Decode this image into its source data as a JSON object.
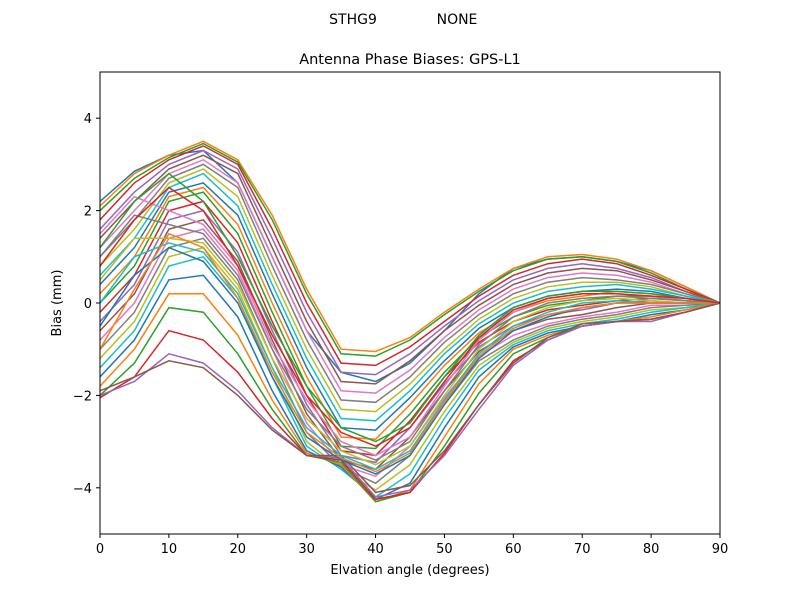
{
  "header": {
    "station": "STHG9",
    "radome": "NONE"
  },
  "chart_data": {
    "type": "line",
    "title": "Antenna Phase Biases: GPS-L1",
    "xlabel": "Elvation angle (degrees)",
    "ylabel": "Bias (mm)",
    "xlim": [
      0,
      90
    ],
    "ylim": [
      -5,
      5
    ],
    "xticks": [
      0,
      10,
      20,
      30,
      40,
      50,
      60,
      70,
      80,
      90
    ],
    "yticks": [
      -4,
      -2,
      0,
      2,
      4
    ],
    "x": [
      0,
      5,
      10,
      15,
      20,
      25,
      30,
      35,
      40,
      45,
      50,
      55,
      60,
      65,
      70,
      75,
      80,
      85,
      90
    ],
    "grid": false,
    "colors": [
      "#1f77b4",
      "#ff7f0e",
      "#2ca02c",
      "#d62728",
      "#9467bd",
      "#8c564b",
      "#e377c2",
      "#7f7f7f",
      "#bcbd22",
      "#17becf"
    ],
    "series": [
      {
        "values": [
          2.2,
          2.85,
          3.2,
          3.3,
          2.6,
          1.0,
          -0.6,
          -1.5,
          -1.7,
          -1.3,
          -0.6,
          0.2,
          0.75,
          0.95,
          1.0,
          0.9,
          0.7,
          0.35,
          0
        ]
      },
      {
        "values": [
          2.1,
          2.8,
          3.2,
          3.5,
          3.1,
          1.9,
          0.3,
          -1.0,
          -1.05,
          -0.75,
          -0.2,
          0.3,
          0.75,
          1.0,
          1.05,
          0.95,
          0.7,
          0.35,
          0
        ]
      },
      {
        "values": [
          2.0,
          2.7,
          3.15,
          3.45,
          3.05,
          1.8,
          0.2,
          -1.1,
          -1.15,
          -0.8,
          -0.25,
          0.25,
          0.7,
          0.95,
          1.0,
          0.9,
          0.65,
          0.3,
          0
        ]
      },
      {
        "values": [
          1.8,
          2.6,
          3.1,
          3.4,
          3.0,
          1.6,
          0.0,
          -1.3,
          -1.35,
          -0.95,
          -0.4,
          0.15,
          0.6,
          0.85,
          0.95,
          0.85,
          0.6,
          0.3,
          0
        ]
      },
      {
        "values": [
          1.6,
          2.4,
          3.0,
          3.3,
          2.9,
          1.4,
          -0.2,
          -1.5,
          -1.55,
          -1.1,
          -0.5,
          0.05,
          0.5,
          0.75,
          0.85,
          0.75,
          0.55,
          0.25,
          0
        ]
      },
      {
        "values": [
          1.4,
          2.2,
          2.9,
          3.2,
          2.8,
          1.2,
          -0.4,
          -1.7,
          -1.75,
          -1.25,
          -0.6,
          -0.05,
          0.4,
          0.65,
          0.75,
          0.7,
          0.5,
          0.25,
          0
        ]
      },
      {
        "values": [
          1.2,
          2.0,
          2.8,
          3.1,
          2.6,
          1.0,
          -0.6,
          -1.9,
          -1.95,
          -1.45,
          -0.75,
          -0.15,
          0.3,
          0.55,
          0.65,
          0.6,
          0.45,
          0.2,
          0
        ]
      },
      {
        "values": [
          1.0,
          1.8,
          2.7,
          3.0,
          2.5,
          0.8,
          -0.8,
          -2.1,
          -2.15,
          -1.6,
          -0.85,
          -0.25,
          0.2,
          0.45,
          0.55,
          0.5,
          0.4,
          0.2,
          0
        ]
      },
      {
        "values": [
          0.8,
          1.6,
          2.6,
          2.9,
          2.3,
          0.6,
          -1.0,
          -2.3,
          -2.35,
          -1.75,
          -1.0,
          -0.35,
          0.1,
          0.35,
          0.45,
          0.45,
          0.35,
          0.15,
          0
        ]
      },
      {
        "values": [
          0.6,
          1.4,
          2.5,
          2.8,
          2.1,
          0.4,
          -1.2,
          -2.5,
          -2.55,
          -1.9,
          -1.1,
          -0.45,
          0.0,
          0.25,
          0.35,
          0.4,
          0.3,
          0.15,
          0
        ]
      },
      {
        "values": [
          0.4,
          1.2,
          2.4,
          2.6,
          1.9,
          0.2,
          -1.4,
          -2.7,
          -2.75,
          -2.05,
          -1.25,
          -0.55,
          -0.1,
          0.15,
          0.25,
          0.3,
          0.25,
          0.1,
          0
        ]
      },
      {
        "values": [
          0.2,
          1.0,
          2.3,
          2.5,
          1.7,
          0.0,
          -1.6,
          -2.9,
          -2.95,
          -2.2,
          -1.35,
          -0.65,
          -0.2,
          0.05,
          0.15,
          0.25,
          0.2,
          0.1,
          0
        ]
      },
      {
        "values": [
          0.0,
          0.8,
          2.2,
          2.4,
          1.5,
          -0.2,
          -1.8,
          -3.1,
          -3.15,
          -2.4,
          -1.5,
          -0.75,
          -0.3,
          -0.05,
          0.05,
          0.15,
          0.15,
          0.05,
          0
        ]
      },
      {
        "values": [
          -0.2,
          0.6,
          2.0,
          2.2,
          1.3,
          -0.4,
          -2.0,
          -3.2,
          -3.3,
          -2.55,
          -1.6,
          -0.85,
          -0.4,
          -0.15,
          -0.05,
          0.05,
          0.1,
          0.05,
          0
        ]
      },
      {
        "values": [
          -0.4,
          0.4,
          1.8,
          2.0,
          1.1,
          -0.6,
          -2.2,
          -3.3,
          -3.45,
          -2.7,
          -1.75,
          -0.95,
          -0.5,
          -0.25,
          -0.15,
          0.0,
          0.05,
          0.0,
          0
        ]
      },
      {
        "values": [
          -0.6,
          0.2,
          1.6,
          1.8,
          0.9,
          -0.8,
          -2.4,
          -3.4,
          -3.6,
          -2.9,
          -1.9,
          -1.05,
          -0.6,
          -0.35,
          -0.25,
          -0.1,
          0.0,
          0.0,
          0
        ]
      },
      {
        "values": [
          -0.8,
          0.0,
          1.4,
          1.6,
          0.7,
          -1.0,
          -2.6,
          -3.5,
          -3.75,
          -3.1,
          -2.05,
          -1.15,
          -0.7,
          -0.45,
          -0.3,
          -0.2,
          -0.05,
          -0.05,
          0
        ]
      },
      {
        "values": [
          -1.0,
          -0.2,
          1.2,
          1.4,
          0.5,
          -1.2,
          -2.8,
          -3.55,
          -3.9,
          -3.3,
          -2.2,
          -1.25,
          -0.8,
          -0.5,
          -0.35,
          -0.25,
          -0.1,
          -0.05,
          0
        ]
      },
      {
        "values": [
          -1.2,
          -0.4,
          1.0,
          1.2,
          0.3,
          -1.4,
          -3.0,
          -3.6,
          -4.05,
          -3.5,
          -2.35,
          -1.35,
          -0.85,
          -0.55,
          -0.4,
          -0.3,
          -0.15,
          -0.1,
          0
        ]
      },
      {
        "values": [
          -1.4,
          -0.6,
          0.8,
          1.0,
          0.1,
          -1.6,
          -3.1,
          -3.6,
          -4.2,
          -3.7,
          -2.5,
          -1.45,
          -0.9,
          -0.6,
          -0.45,
          -0.35,
          -0.2,
          -0.1,
          0
        ]
      },
      {
        "values": [
          -1.6,
          -0.8,
          0.5,
          0.6,
          -0.3,
          -1.9,
          -3.2,
          -3.55,
          -4.25,
          -3.9,
          -2.7,
          -1.6,
          -0.95,
          -0.65,
          -0.5,
          -0.4,
          -0.25,
          -0.15,
          0
        ]
      },
      {
        "values": [
          -1.8,
          -1.0,
          0.2,
          0.2,
          -0.7,
          -2.1,
          -3.25,
          -3.5,
          -4.3,
          -4.05,
          -2.9,
          -1.75,
          -1.0,
          -0.7,
          -0.5,
          -0.4,
          -0.3,
          -0.15,
          0
        ]
      },
      {
        "values": [
          -2.0,
          -1.3,
          -0.1,
          -0.2,
          -1.1,
          -2.3,
          -3.3,
          -3.45,
          -4.3,
          -4.1,
          -3.1,
          -1.95,
          -1.1,
          -0.75,
          -0.5,
          -0.4,
          -0.35,
          -0.2,
          0
        ]
      },
      {
        "values": [
          -2.05,
          -1.6,
          -0.6,
          -0.8,
          -1.5,
          -2.5,
          -3.3,
          -3.4,
          -4.25,
          -4.1,
          -3.25,
          -2.2,
          -1.25,
          -0.8,
          -0.5,
          -0.4,
          -0.35,
          -0.2,
          0
        ]
      },
      {
        "values": [
          -2.0,
          -1.7,
          -1.1,
          -1.3,
          -1.9,
          -2.7,
          -3.3,
          -3.35,
          -4.2,
          -4.05,
          -3.3,
          -2.3,
          -1.35,
          -0.8,
          -0.5,
          -0.4,
          -0.4,
          -0.2,
          0
        ]
      },
      {
        "values": [
          -1.9,
          -1.6,
          -1.25,
          -1.4,
          -2.0,
          -2.75,
          -3.3,
          -3.3,
          -4.1,
          -3.95,
          -3.2,
          -2.2,
          -1.3,
          -0.75,
          -0.45,
          -0.4,
          -0.35,
          -0.2,
          0
        ]
      },
      {
        "values": [
          1.5,
          2.3,
          2.0,
          1.7,
          0.8,
          -0.9,
          -2.1,
          -3.0,
          -3.3,
          -2.9,
          -1.8,
          -0.8,
          -0.2,
          0.1,
          0.2,
          0.2,
          0.15,
          0.05,
          0
        ]
      },
      {
        "values": [
          1.0,
          1.9,
          1.7,
          1.5,
          0.6,
          -1.0,
          -2.3,
          -3.1,
          -3.4,
          -3.0,
          -1.9,
          -0.9,
          -0.3,
          0.0,
          0.1,
          0.15,
          0.1,
          0.05,
          0
        ]
      },
      {
        "values": [
          0.5,
          1.4,
          1.4,
          1.3,
          0.4,
          -1.2,
          -2.5,
          -3.2,
          -3.5,
          -3.1,
          -2.0,
          -1.0,
          -0.4,
          -0.1,
          0.05,
          0.1,
          0.05,
          0.0,
          0
        ]
      },
      {
        "values": [
          0.0,
          1.0,
          1.3,
          1.1,
          0.2,
          -1.4,
          -2.7,
          -3.3,
          -3.6,
          -3.2,
          -2.1,
          -1.1,
          -0.5,
          -0.2,
          0.0,
          0.05,
          0.0,
          0.0,
          0
        ]
      },
      {
        "values": [
          -0.5,
          0.6,
          1.2,
          0.9,
          0.0,
          -1.6,
          -2.9,
          -3.4,
          -3.7,
          -3.3,
          -2.2,
          -1.2,
          -0.6,
          -0.3,
          -0.1,
          0.0,
          0.0,
          0.0,
          0
        ]
      },
      {
        "values": [
          -1.0,
          0.3,
          1.5,
          1.2,
          0.1,
          -1.5,
          -2.8,
          -3.35,
          -3.65,
          -3.25,
          -2.15,
          -1.15,
          -0.55,
          -0.25,
          -0.1,
          0.0,
          0.0,
          0.0,
          0
        ]
      },
      {
        "values": [
          1.2,
          2.2,
          2.8,
          2.2,
          1.0,
          -0.5,
          -1.8,
          -2.7,
          -3.0,
          -2.6,
          -1.6,
          -0.7,
          -0.1,
          0.15,
          0.25,
          0.25,
          0.2,
          0.1,
          0
        ]
      },
      {
        "values": [
          0.8,
          1.8,
          2.5,
          2.0,
          0.8,
          -0.7,
          -2.0,
          -2.8,
          -3.1,
          -2.7,
          -1.7,
          -0.75,
          -0.15,
          0.1,
          0.2,
          0.2,
          0.15,
          0.1,
          0
        ]
      }
    ]
  }
}
